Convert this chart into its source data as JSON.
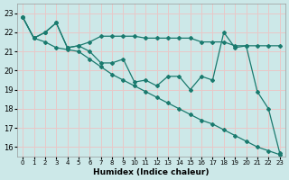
{
  "xlabel": "Humidex (Indice chaleur)",
  "bg_color": "#cce8e8",
  "grid_color": "#e8c8c8",
  "line_color": "#1a7a6e",
  "xlim": [
    -0.5,
    23.5
  ],
  "ylim": [
    15.5,
    23.5
  ],
  "yticks": [
    16,
    17,
    18,
    19,
    20,
    21,
    22,
    23
  ],
  "xticks": [
    0,
    1,
    2,
    3,
    4,
    5,
    6,
    7,
    8,
    9,
    10,
    11,
    12,
    13,
    14,
    15,
    16,
    17,
    18,
    19,
    20,
    21,
    22,
    23
  ],
  "s1": [
    22.8,
    21.7,
    22.0,
    22.5,
    21.2,
    21.3,
    21.5,
    21.8,
    21.8,
    21.8,
    21.8,
    21.7,
    21.7,
    21.7,
    21.7,
    21.7,
    21.5,
    21.5,
    21.5,
    21.3,
    21.3,
    21.3,
    21.3,
    21.3
  ],
  "s2": [
    22.8,
    21.7,
    22.0,
    22.5,
    21.2,
    21.3,
    21.0,
    20.4,
    20.4,
    20.6,
    19.4,
    19.5,
    19.2,
    19.7,
    19.7,
    19.0,
    19.7,
    19.5,
    22.0,
    21.2,
    21.3,
    18.9,
    18.0,
    15.7
  ],
  "s3": [
    22.8,
    21.7,
    21.5,
    21.2,
    21.1,
    21.0,
    20.6,
    20.2,
    19.8,
    19.5,
    19.2,
    18.9,
    18.6,
    18.3,
    18.0,
    17.7,
    17.4,
    17.2,
    16.9,
    16.6,
    16.3,
    16.0,
    15.8,
    15.6
  ]
}
